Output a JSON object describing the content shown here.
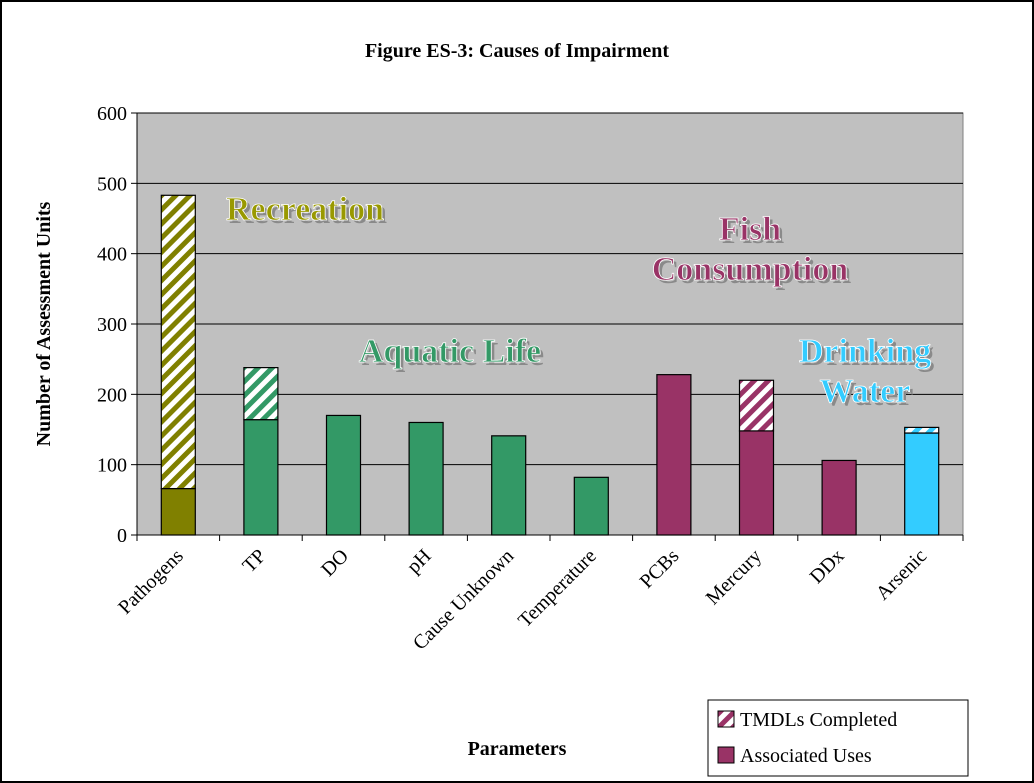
{
  "chart_data": {
    "type": "stacked_bar",
    "title": "Figure ES-3: Causes of Impairment",
    "x_label": "Parameters",
    "y_label": "Number of Assessment Units",
    "categories": [
      "Pathogens",
      "TP",
      "DO",
      "pH",
      "Cause Unknown",
      "Temperature",
      "PCBs",
      "Mercury",
      "DDx",
      "Arsenic"
    ],
    "bar_colors": [
      "#808000",
      "#339966",
      "#339966",
      "#339966",
      "#339966",
      "#339966",
      "#993366",
      "#993366",
      "#993366",
      "#33ccff"
    ],
    "series": [
      {
        "name": "Associated Uses",
        "color": "#993366",
        "pattern": "solid",
        "values": [
          66,
          164,
          170,
          160,
          141,
          82,
          228,
          148,
          106,
          145
        ]
      },
      {
        "name": "TMDLs Completed",
        "color": "#993366",
        "pattern": "hatch",
        "values": [
          417,
          74,
          0,
          0,
          0,
          0,
          0,
          72,
          0,
          8
        ]
      }
    ],
    "annotations": [
      {
        "lines": [
          "Recreation"
        ],
        "color": "#999900"
      },
      {
        "lines": [
          "Aquatic Life"
        ],
        "color": "#339966"
      },
      {
        "lines": [
          "Fish",
          "Consumption"
        ],
        "color": "#993366"
      },
      {
        "lines": [
          "Drinking",
          "Water"
        ],
        "color": "#33ccff"
      }
    ],
    "ylim": [
      0,
      600
    ],
    "yticks": [
      0,
      100,
      200,
      300,
      400,
      500,
      600
    ],
    "grid": true,
    "legend": "bottom-right"
  }
}
